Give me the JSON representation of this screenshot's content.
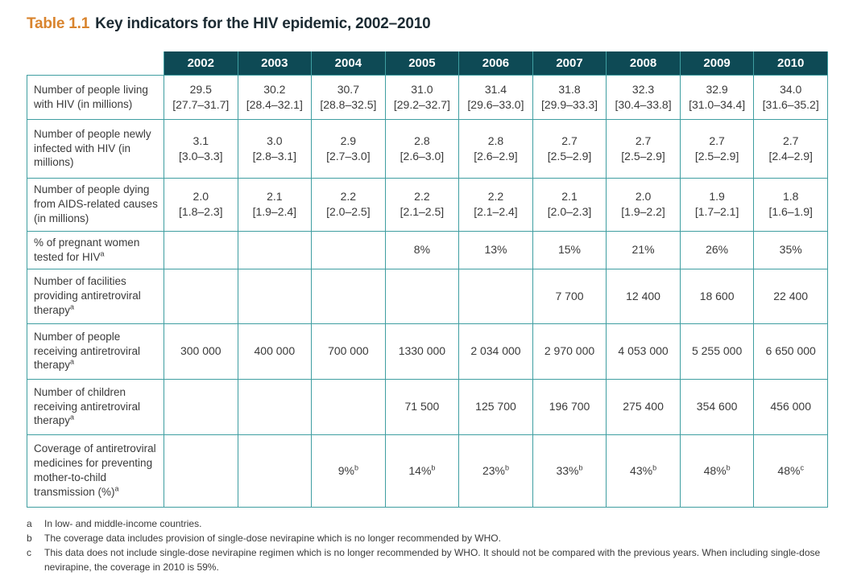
{
  "title": {
    "prefix": "Table 1.1",
    "text": "Key indicators for the HIV epidemic, 2002–2010"
  },
  "colors": {
    "header_bg": "#0e4a55",
    "border": "#3f9ea1",
    "title_accent": "#d9842e",
    "title_text": "#1c2b33",
    "body_text": "#3a3a3a",
    "page_bg": "#ffffff"
  },
  "table": {
    "columns": [
      "2002",
      "2003",
      "2004",
      "2005",
      "2006",
      "2007",
      "2008",
      "2009",
      "2010"
    ],
    "rows": [
      {
        "label": "Number of people living with HIV (in millions)",
        "sup": "",
        "cells": [
          {
            "v": "29.5",
            "r": "[27.7–31.7]"
          },
          {
            "v": "30.2",
            "r": "[28.4–32.1]"
          },
          {
            "v": "30.7",
            "r": "[28.8–32.5]"
          },
          {
            "v": "31.0",
            "r": "[29.2–32.7]"
          },
          {
            "v": "31.4",
            "r": "[29.6–33.0]"
          },
          {
            "v": "31.8",
            "r": "[29.9–33.3]"
          },
          {
            "v": "32.3",
            "r": "[30.4–33.8]"
          },
          {
            "v": "32.9",
            "r": "[31.0–34.4]"
          },
          {
            "v": "34.0",
            "r": "[31.6–35.2]"
          }
        ]
      },
      {
        "label": "Number of people newly infected with HIV (in millions)",
        "sup": "",
        "cells": [
          {
            "v": "3.1",
            "r": "[3.0–3.3]"
          },
          {
            "v": "3.0",
            "r": "[2.8–3.1]"
          },
          {
            "v": "2.9",
            "r": "[2.7–3.0]"
          },
          {
            "v": "2.8",
            "r": "[2.6–3.0]"
          },
          {
            "v": "2.8",
            "r": "[2.6–2.9]"
          },
          {
            "v": "2.7",
            "r": "[2.5–2.9]"
          },
          {
            "v": "2.7",
            "r": "[2.5–2.9]"
          },
          {
            "v": "2.7",
            "r": "[2.5–2.9]"
          },
          {
            "v": "2.7",
            "r": "[2.4–2.9]"
          }
        ]
      },
      {
        "label": "Number of people dying from AIDS-related causes (in millions)",
        "sup": "",
        "cells": [
          {
            "v": "2.0",
            "r": "[1.8–2.3]"
          },
          {
            "v": "2.1",
            "r": "[1.9–2.4]"
          },
          {
            "v": "2.2",
            "r": "[2.0–2.5]"
          },
          {
            "v": "2.2",
            "r": "[2.1–2.5]"
          },
          {
            "v": "2.2",
            "r": "[2.1–2.4]"
          },
          {
            "v": "2.1",
            "r": "[2.0–2.3]"
          },
          {
            "v": "2.0",
            "r": "[1.9–2.2]"
          },
          {
            "v": "1.9",
            "r": "[1.7–2.1]"
          },
          {
            "v": "1.8",
            "r": "[1.6–1.9]"
          }
        ]
      },
      {
        "label": "% of pregnant women tested for HIV",
        "sup": "a",
        "cells": [
          {},
          {},
          {},
          {
            "v": "8%"
          },
          {
            "v": "13%"
          },
          {
            "v": "15%"
          },
          {
            "v": "21%"
          },
          {
            "v": "26%"
          },
          {
            "v": "35%"
          }
        ]
      },
      {
        "label": "Number of facilities providing antiretroviral therapy",
        "sup": "a",
        "cells": [
          {},
          {},
          {},
          {},
          {},
          {
            "v": "7 700"
          },
          {
            "v": "12 400"
          },
          {
            "v": "18 600"
          },
          {
            "v": "22 400"
          }
        ]
      },
      {
        "label": "Number of people receiving antiretroviral therapy",
        "sup": "a",
        "cells": [
          {
            "v": "300 000"
          },
          {
            "v": "400 000"
          },
          {
            "v": "700 000"
          },
          {
            "v": "1330 000"
          },
          {
            "v": "2 034 000"
          },
          {
            "v": "2 970 000"
          },
          {
            "v": "4 053 000"
          },
          {
            "v": "5 255 000"
          },
          {
            "v": "6 650 000"
          }
        ]
      },
      {
        "label": "Number of children receiving antiretroviral therapy",
        "sup": "a",
        "cells": [
          {},
          {},
          {},
          {
            "v": "71 500"
          },
          {
            "v": "125 700"
          },
          {
            "v": "196 700"
          },
          {
            "v": "275 400"
          },
          {
            "v": "354 600"
          },
          {
            "v": "456 000"
          }
        ]
      },
      {
        "label": "Coverage of antiretroviral medicines for preventing mother-to-child transmission (%)",
        "sup": "a",
        "cells": [
          {},
          {},
          {
            "v": "9%",
            "sup": "b"
          },
          {
            "v": "14%",
            "sup": "b"
          },
          {
            "v": "23%",
            "sup": "b"
          },
          {
            "v": "33%",
            "sup": "b"
          },
          {
            "v": "43%",
            "sup": "b"
          },
          {
            "v": "48%",
            "sup": "b"
          },
          {
            "v": "48%",
            "sup": "c"
          }
        ]
      }
    ]
  },
  "footnotes": [
    {
      "letter": "a",
      "text": "In low- and middle-income countries."
    },
    {
      "letter": "b",
      "text": "The coverage data includes provision of single-dose nevirapine which is no longer recommended by WHO."
    },
    {
      "letter": "c",
      "text": "This data does not include single-dose nevirapine regimen which is no longer recommended by WHO. It should not be compared with the previous years. When including single-dose nevirapine, the coverage in 2010 is 59%."
    }
  ]
}
